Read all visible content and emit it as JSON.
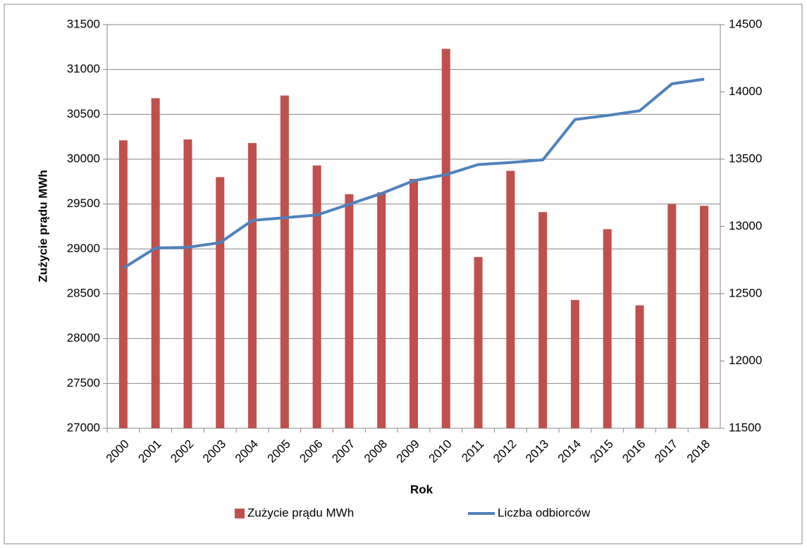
{
  "chart_data": {
    "type": "bar_line",
    "x_label": "Rok",
    "y_label": "Zużycie prądu MWh",
    "categories": [
      "2000",
      "2001",
      "2002",
      "2003",
      "2004",
      "2005",
      "2006",
      "2007",
      "2008",
      "2009",
      "2010",
      "2011",
      "2012",
      "2013",
      "2014",
      "2015",
      "2016",
      "2017",
      "2018"
    ],
    "series": [
      {
        "name": "Zużycie prądu MWh",
        "type": "bar",
        "color": "#c0504d",
        "values": [
          30210,
          30680,
          30220,
          29800,
          30180,
          30710,
          29930,
          29610,
          29630,
          29780,
          31230,
          28910,
          29870,
          29410,
          28430,
          29220,
          28370,
          29500,
          29480
        ]
      },
      {
        "name": "Liczba odbiorców",
        "type": "line",
        "axis": "y2",
        "color": "#4f81bd",
        "values": [
          12690,
          12840,
          12845,
          12880,
          13045,
          13065,
          13085,
          13165,
          13245,
          13340,
          13385,
          13460,
          13475,
          13495,
          13795,
          13825,
          13860,
          14060,
          14095
        ]
      }
    ],
    "ylim": [
      27000,
      31500
    ],
    "yticks": [
      27000,
      27500,
      28000,
      28500,
      29000,
      29500,
      30000,
      30500,
      31000,
      31500
    ],
    "y2lim": [
      11500,
      14500
    ],
    "y2ticks": [
      11500,
      12000,
      12500,
      13000,
      13500,
      14000,
      14500
    ],
    "grid": true,
    "legend": "bottom"
  }
}
